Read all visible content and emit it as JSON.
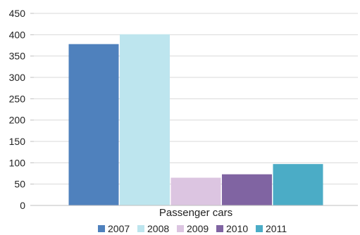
{
  "chart_data": {
    "type": "bar",
    "categories": [
      "Passenger cars"
    ],
    "series": [
      {
        "name": "2007",
        "values": [
          378
        ],
        "color": "#4f81bd"
      },
      {
        "name": "2008",
        "values": [
          401
        ],
        "color": "#bde5ee"
      },
      {
        "name": "2009",
        "values": [
          65
        ],
        "color": "#dcc5e1"
      },
      {
        "name": "2010",
        "values": [
          73
        ],
        "color": "#8064a2"
      },
      {
        "name": "2011",
        "values": [
          97
        ],
        "color": "#4bacc6"
      }
    ],
    "yticks": [
      "0",
      "50",
      "100",
      "150",
      "200",
      "250",
      "300",
      "350",
      "400",
      "450"
    ],
    "ylim": [
      0,
      450
    ],
    "grid": true,
    "legend": "bottom"
  }
}
